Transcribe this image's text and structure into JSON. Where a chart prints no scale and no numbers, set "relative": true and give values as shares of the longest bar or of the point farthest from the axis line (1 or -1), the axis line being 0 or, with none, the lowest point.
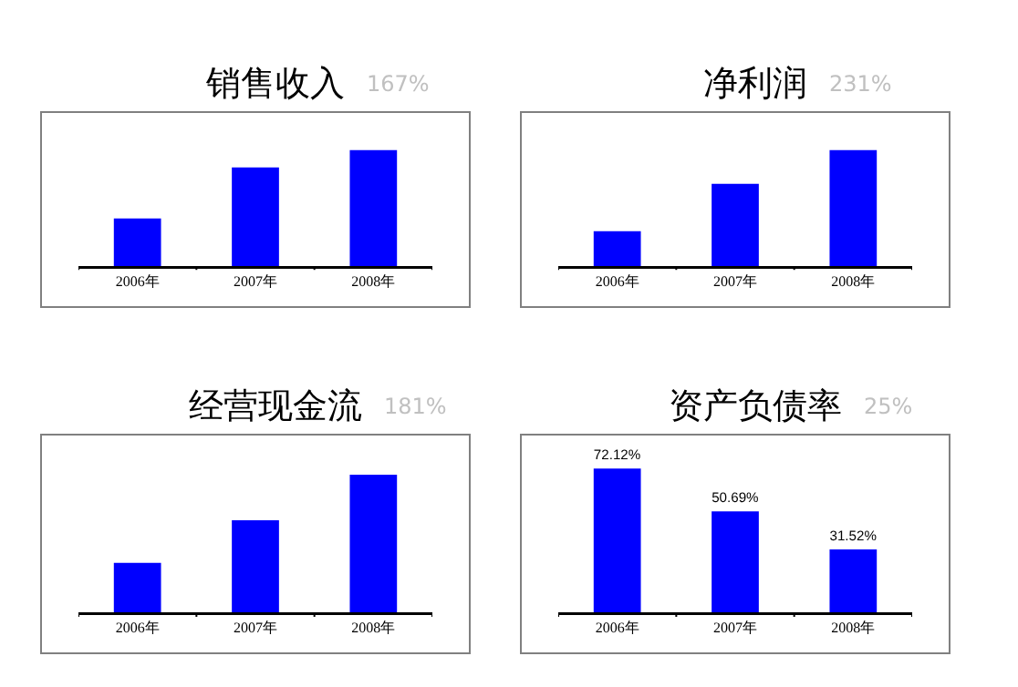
{
  "chart_data": [
    {
      "type": "bar",
      "title": "销售收入",
      "subtitle": "167%",
      "categories": [
        "2006年",
        "2007年",
        "2008年"
      ],
      "relative": true,
      "color": "#0000ff",
      "values": [
        0.41,
        0.85,
        1
      ]
    },
    {
      "type": "bar",
      "title": "净利润",
      "subtitle": "231%",
      "categories": [
        "2006年",
        "2007年",
        "2008年"
      ],
      "relative": true,
      "color": "#0000ff",
      "values": [
        0.3,
        0.71,
        1
      ]
    },
    {
      "type": "bar",
      "title": "经营现金流",
      "subtitle": "181%",
      "categories": [
        "2006年",
        "2007年",
        "2008年"
      ],
      "relative": true,
      "color": "#0000ff",
      "values": [
        0.36,
        0.67,
        1
      ]
    },
    {
      "type": "bar",
      "title": "资产负债率",
      "subtitle": "25%",
      "categories": [
        "2006年",
        "2007年",
        "2008年"
      ],
      "color": "#0000ff",
      "values": [
        72.12,
        50.69,
        31.52
      ],
      "value_labels": [
        "72.12%",
        "50.69%",
        "31.52%"
      ]
    }
  ]
}
